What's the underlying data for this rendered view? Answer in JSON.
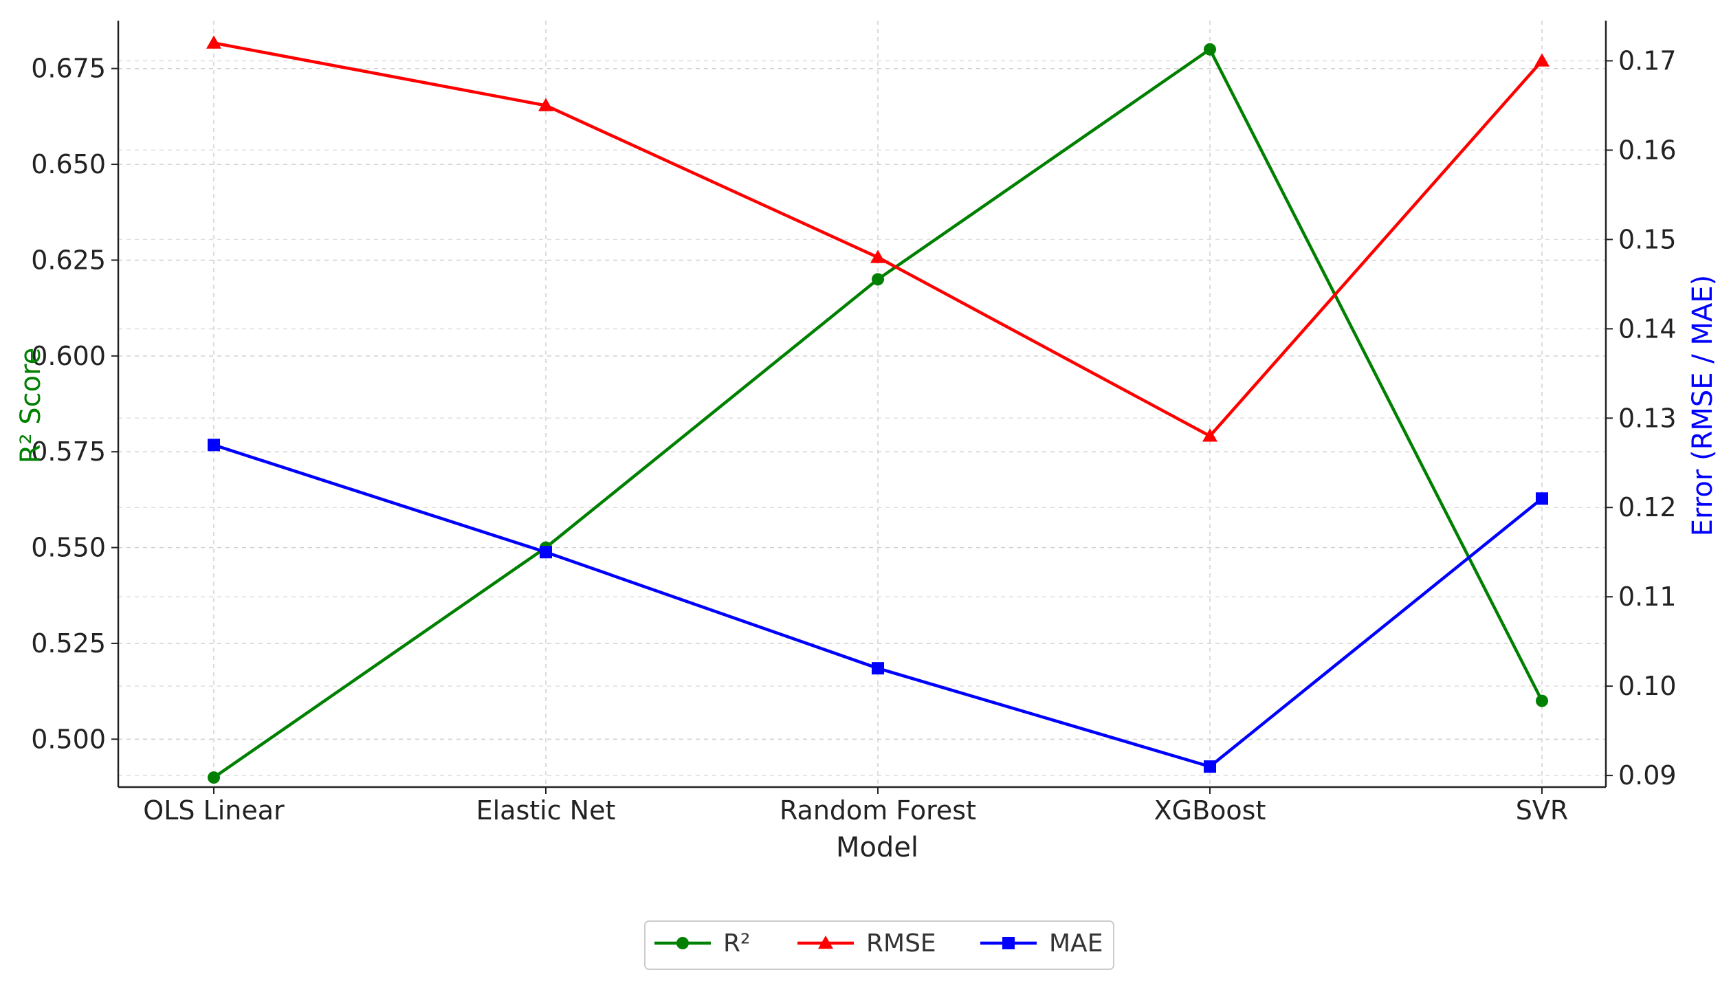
{
  "chart_data": {
    "type": "line",
    "xlabel": "Model",
    "ylabel": "R² Score",
    "y2label": "Error (RMSE / MAE)",
    "categories": [
      "OLS Linear",
      "Elastic Net",
      "Random Forest",
      "XGBoost",
      "SVR"
    ],
    "ylim": [
      0.4875,
      0.6875
    ],
    "y2lim": [
      0.0887,
      0.1745
    ],
    "yticks": [
      "0.500",
      "0.525",
      "0.550",
      "0.575",
      "0.600",
      "0.625",
      "0.650",
      "0.675"
    ],
    "y2ticks": [
      "0.09",
      "0.10",
      "0.11",
      "0.12",
      "0.13",
      "0.14",
      "0.15",
      "0.16",
      "0.17"
    ],
    "grid": true,
    "legend_position": "bottom-center",
    "series": [
      {
        "name": "R²",
        "axis": "left",
        "color": "#008000",
        "marker": "circle",
        "values": [
          0.49,
          0.55,
          0.62,
          0.68,
          0.51
        ]
      },
      {
        "name": "RMSE",
        "axis": "right",
        "color": "#ff0000",
        "marker": "triangle",
        "values": [
          0.172,
          0.165,
          0.148,
          0.128,
          0.17
        ]
      },
      {
        "name": "MAE",
        "axis": "right",
        "color": "#0000ff",
        "marker": "square",
        "values": [
          0.127,
          0.115,
          0.102,
          0.091,
          0.121
        ]
      }
    ]
  }
}
